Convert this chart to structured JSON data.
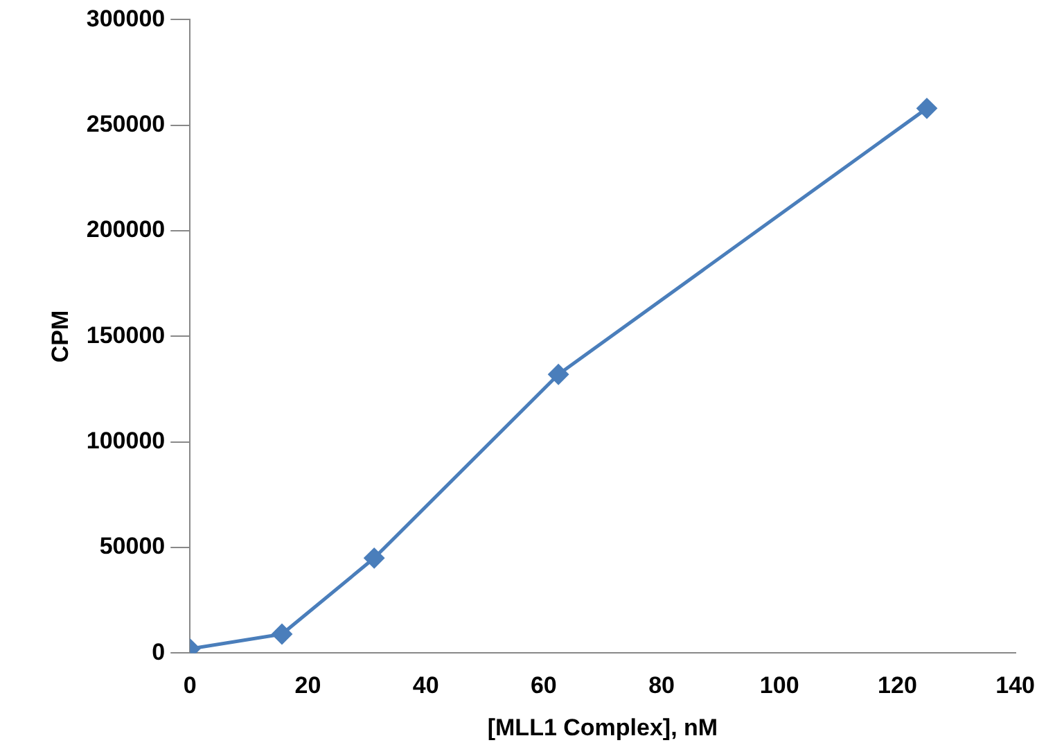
{
  "chart_data": {
    "type": "line",
    "xlabel": "[MLL1 Complex], nM",
    "ylabel": "CPM",
    "x": [
      0,
      15.6,
      31.25,
      62.5,
      125
    ],
    "series": [
      {
        "color": "#4a7ebb",
        "values": [
          2000,
          9000,
          45000,
          132000,
          258000
        ]
      }
    ],
    "xlim": [
      0,
      140
    ],
    "xticks": [
      0,
      20,
      40,
      60,
      80,
      100,
      120,
      140
    ],
    "ylim": [
      0,
      300000
    ],
    "yticks": [
      0,
      50000,
      100000,
      150000,
      200000,
      250000,
      300000
    ],
    "grid": false,
    "legend": false,
    "marker": "diamond",
    "line_style": "solid"
  }
}
